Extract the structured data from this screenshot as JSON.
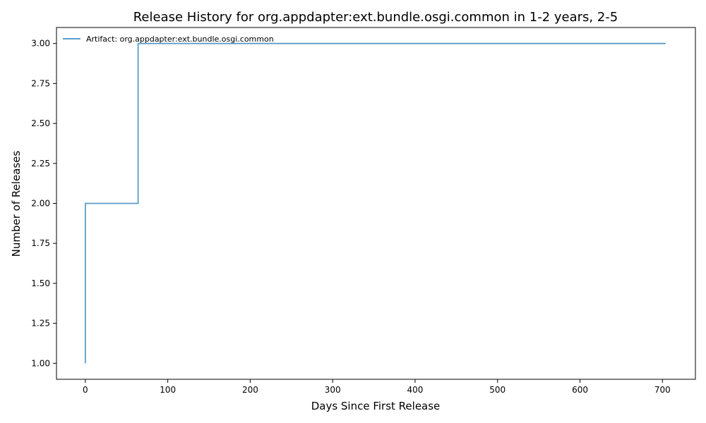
{
  "chart_data": {
    "type": "line",
    "title": "Release History for org.appdapter:ext.bundle.osgi.common in 1-2 years, 2-5",
    "xlabel": "Days Since First Release",
    "ylabel": "Number of Releases",
    "xlim": [
      -35,
      740
    ],
    "ylim": [
      0.9,
      3.1
    ],
    "xticks": [
      0,
      100,
      200,
      300,
      400,
      500,
      600,
      700
    ],
    "xtick_labels": [
      "0",
      "100",
      "200",
      "300",
      "400",
      "500",
      "600",
      "700"
    ],
    "yticks": [
      1.0,
      1.25,
      1.5,
      1.75,
      2.0,
      2.25,
      2.5,
      2.75,
      3.0
    ],
    "ytick_labels": [
      "1.00",
      "1.25",
      "1.50",
      "1.75",
      "2.00",
      "2.25",
      "2.50",
      "2.75",
      "3.00"
    ],
    "grid": false,
    "legend_position": "top-left",
    "series": [
      {
        "name": "Artifact: org.appdapter:ext.bundle.osgi.common",
        "color": "#5b9ec9",
        "step": "post",
        "x": [
          0,
          0,
          64,
          704
        ],
        "y": [
          1,
          2,
          3,
          3
        ]
      }
    ]
  }
}
